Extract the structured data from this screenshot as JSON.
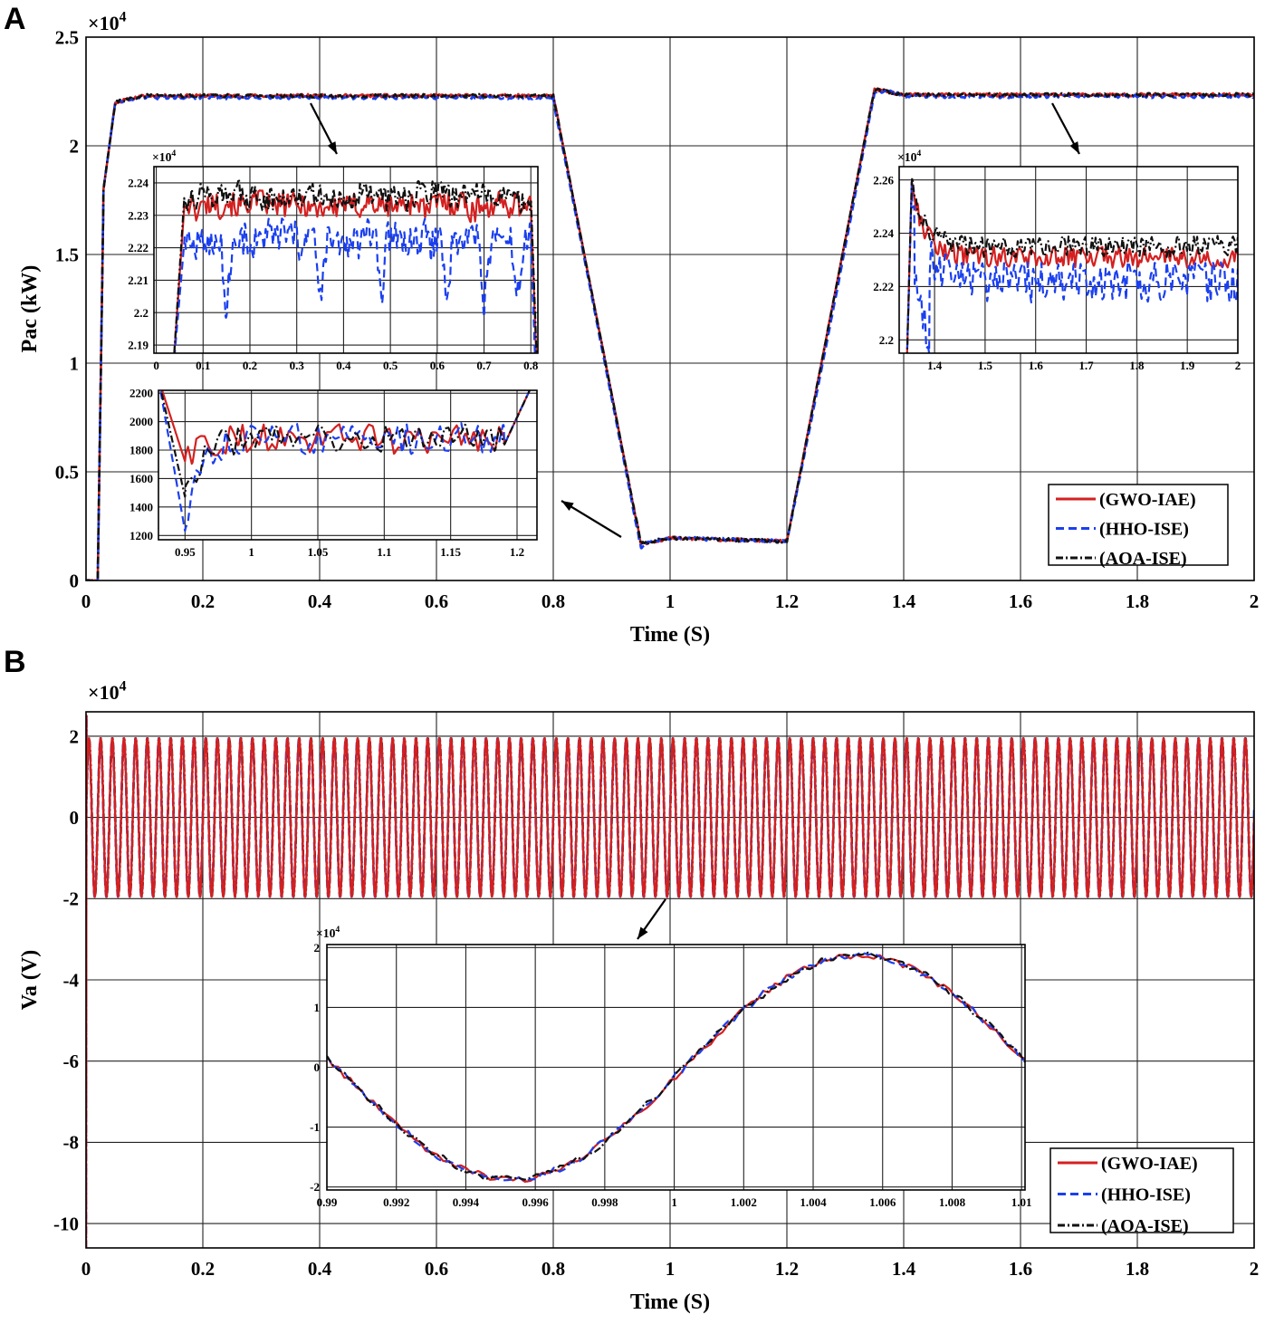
{
  "panels": {
    "a": {
      "label": "A"
    },
    "b": {
      "label": "B"
    }
  },
  "legend": {
    "entries": [
      "(GWO-IAE)",
      "(HHO-ISE)",
      "(AOA-ISE)"
    ]
  },
  "chart_data": [
    {
      "id": "A-main",
      "type": "line",
      "xlabel": "Time (S)",
      "ylabel": "Pac (kW)",
      "multiplier": "×10",
      "multiplier_exp": "4",
      "xlim": [
        0,
        2
      ],
      "ylim": [
        0,
        2.5
      ],
      "xticks": [
        0,
        0.2,
        0.4,
        0.6,
        0.8,
        1,
        1.2,
        1.4,
        1.6,
        1.8,
        2
      ],
      "xtick_labels": [
        "0",
        "0.2",
        "0.4",
        "0.6",
        "0.8",
        "1",
        "1.2",
        "1.4",
        "1.6",
        "1.8",
        "2"
      ],
      "yticks": [
        0,
        0.5,
        1,
        1.5,
        2,
        2.5
      ],
      "ytick_labels": [
        "0",
        "0.5",
        "1",
        "1.5",
        "2",
        "2.5"
      ],
      "legend": [
        "(GWO-IAE)",
        "(HHO-ISE)",
        "(AOA-ISE)"
      ],
      "series_colors": [
        "#d42020",
        "#1a3ff0",
        "#111111"
      ],
      "envelope": [
        [
          0,
          0
        ],
        [
          0.02,
          0
        ],
        [
          0.03,
          1.8
        ],
        [
          0.05,
          2.2
        ],
        [
          0.1,
          2.23
        ],
        [
          0.8,
          2.23
        ],
        [
          0.95,
          0.17
        ],
        [
          1.0,
          0.195
        ],
        [
          1.2,
          0.18
        ],
        [
          1.35,
          2.26
        ],
        [
          1.4,
          2.235
        ],
        [
          2,
          2.235
        ]
      ]
    },
    {
      "id": "A-inset-1",
      "type": "line",
      "multiplier": "×10",
      "multiplier_exp": "4",
      "xlim": [
        -0.005,
        0.815
      ],
      "ylim": [
        2.1875,
        2.245
      ],
      "xticks": [
        0,
        0.1,
        0.2,
        0.3,
        0.4,
        0.5,
        0.6,
        0.7,
        0.8
      ],
      "xtick_labels": [
        "0",
        "0.1",
        "0.2",
        "0.3",
        "0.4",
        "0.5",
        "0.6",
        "0.7",
        "0.8"
      ],
      "yticks": [
        2.19,
        2.2,
        2.21,
        2.22,
        2.23,
        2.24
      ],
      "ytick_labels": [
        "2.19",
        "2.2",
        "2.21",
        "2.22",
        "2.23",
        "2.24"
      ],
      "series_means": [
        2.233,
        2.222,
        2.236
      ]
    },
    {
      "id": "A-inset-2",
      "type": "line",
      "multiplier": "×10",
      "multiplier_exp": "4",
      "xlim": [
        1.33,
        2.0
      ],
      "ylim": [
        2.195,
        2.265
      ],
      "xticks": [
        1.4,
        1.5,
        1.6,
        1.7,
        1.8,
        1.9,
        2
      ],
      "xtick_labels": [
        "1.4",
        "1.5",
        "1.6",
        "1.7",
        "1.8",
        "1.9",
        "2"
      ],
      "yticks": [
        2.2,
        2.22,
        2.24,
        2.26
      ],
      "ytick_labels": [
        "2.2",
        "2.22",
        "2.24",
        "2.26"
      ],
      "series_means": [
        2.231,
        2.222,
        2.235
      ]
    },
    {
      "id": "A-inset-3",
      "type": "line",
      "xlim": [
        0.93,
        1.215
      ],
      "ylim": [
        1170,
        2220
      ],
      "xticks": [
        0.95,
        1,
        1.05,
        1.1,
        1.15,
        1.2
      ],
      "xtick_labels": [
        "0.95",
        "1",
        "1.05",
        "1.1",
        "1.15",
        "1.2"
      ],
      "yticks": [
        1200,
        1400,
        1600,
        1800,
        2000,
        2200
      ],
      "ytick_labels": [
        "1200",
        "1400",
        "1600",
        "1800",
        "2000",
        "2200"
      ],
      "series_dips": [
        1720,
        1230,
        1470
      ]
    },
    {
      "id": "B-main",
      "type": "line",
      "xlabel": "Time (S)",
      "ylabel": "Va (V)",
      "multiplier": "×10",
      "multiplier_exp": "4",
      "xlim": [
        0,
        2
      ],
      "ylim": [
        -10.6,
        2.6
      ],
      "xticks": [
        0,
        0.2,
        0.4,
        0.6,
        0.8,
        1,
        1.2,
        1.4,
        1.6,
        1.8,
        2
      ],
      "xtick_labels": [
        "0",
        "0.2",
        "0.4",
        "0.6",
        "0.8",
        "1",
        "1.2",
        "1.4",
        "1.6",
        "1.8",
        "2"
      ],
      "yticks": [
        -10,
        -8,
        -6,
        -4,
        -2,
        0,
        2
      ],
      "ytick_labels": [
        "-10",
        "-8",
        "-6",
        "-4",
        "-2",
        "0",
        "2"
      ],
      "legend": [
        "(GWO-IAE)",
        "(HHO-ISE)",
        "(AOA-ISE)"
      ],
      "amplitude": 1.95,
      "frequency_hz": 50
    },
    {
      "id": "B-inset",
      "type": "line",
      "multiplier": "×10",
      "multiplier_exp": "4",
      "xlim": [
        0.99,
        1.0101
      ],
      "ylim": [
        -2.05,
        2.05
      ],
      "xticks": [
        0.99,
        0.992,
        0.994,
        0.996,
        0.998,
        1,
        1.002,
        1.004,
        1.006,
        1.008,
        1.01
      ],
      "xtick_labels": [
        "0.99",
        "0.992",
        "0.994",
        "0.996",
        "0.998",
        "1",
        "1.002",
        "1.004",
        "1.006",
        "1.008",
        "1.01"
      ],
      "yticks": [
        -2,
        -1,
        0,
        1,
        2
      ],
      "ytick_labels": [
        "-2",
        "-1",
        "0",
        "1",
        "2"
      ],
      "amplitude": 1.87
    }
  ]
}
